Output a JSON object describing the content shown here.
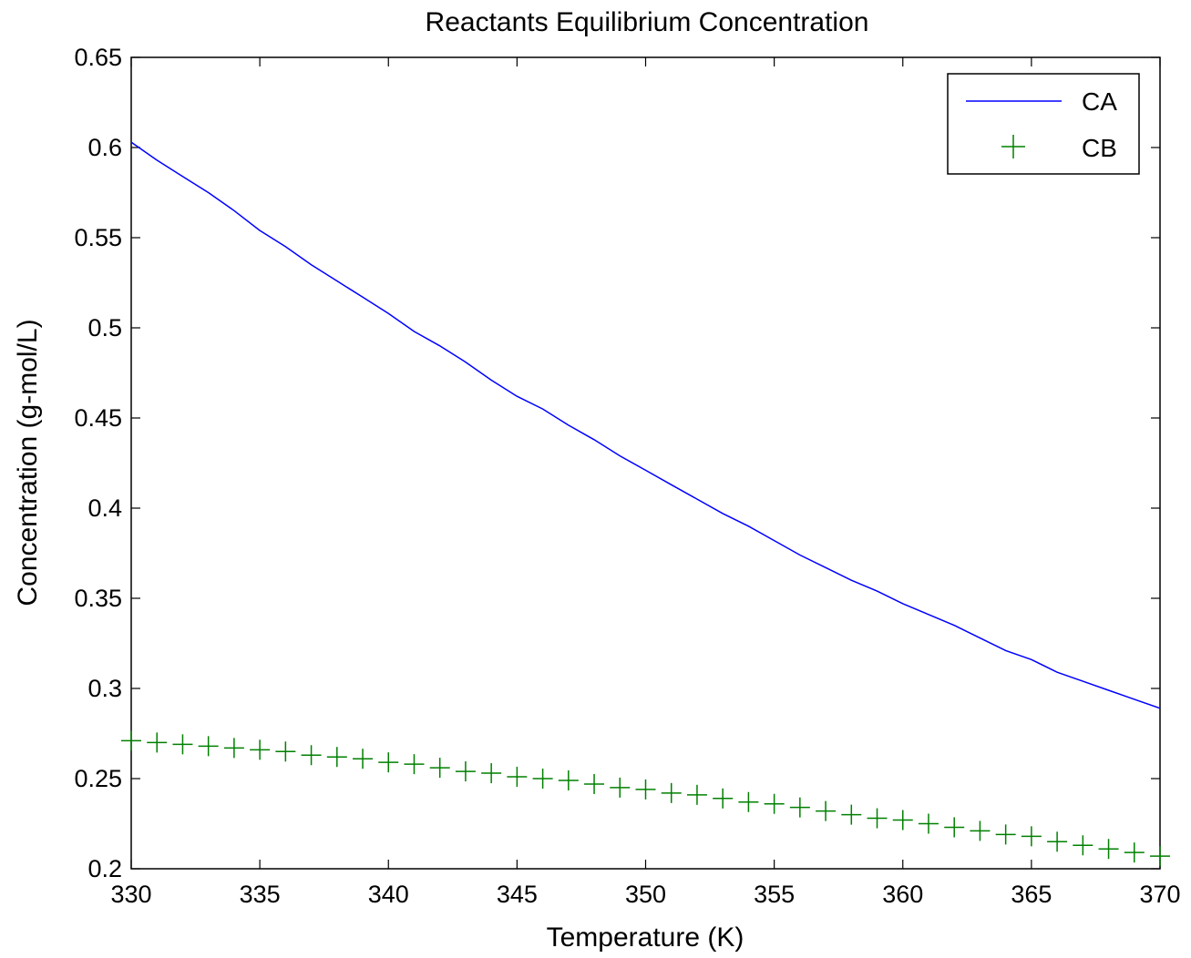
{
  "chart_data": {
    "type": "line",
    "title": "Reactants Equilibrium Concentration",
    "xlabel": "Temperature (K)",
    "ylabel": "Concentration (g-mol/L)",
    "xlim": [
      330,
      370
    ],
    "ylim": [
      0.2,
      0.65
    ],
    "xticks": [
      "330",
      "335",
      "340",
      "345",
      "350",
      "355",
      "360",
      "365",
      "370"
    ],
    "yticks": [
      "0.2",
      "0.25",
      "0.3",
      "0.35",
      "0.4",
      "0.45",
      "0.5",
      "0.55",
      "0.6",
      "0.65"
    ],
    "grid": false,
    "legend_position": "top-right",
    "x": [
      330,
      331,
      332,
      333,
      334,
      335,
      336,
      337,
      338,
      339,
      340,
      341,
      342,
      343,
      344,
      345,
      346,
      347,
      348,
      349,
      350,
      351,
      352,
      353,
      354,
      355,
      356,
      357,
      358,
      359,
      360,
      361,
      362,
      363,
      364,
      365,
      366,
      367,
      368,
      369,
      370
    ],
    "series": [
      {
        "name": "CA",
        "style": "line",
        "color": "#0000ff",
        "values": [
          0.603,
          0.593,
          0.584,
          0.575,
          0.565,
          0.554,
          0.545,
          0.535,
          0.526,
          0.517,
          0.508,
          0.498,
          0.49,
          0.481,
          0.471,
          0.462,
          0.455,
          0.446,
          0.438,
          0.429,
          0.421,
          0.413,
          0.405,
          0.397,
          0.39,
          0.382,
          0.374,
          0.367,
          0.36,
          0.354,
          0.347,
          0.341,
          0.335,
          0.328,
          0.321,
          0.316,
          0.309,
          0.304,
          0.299,
          0.294,
          0.289
        ]
      },
      {
        "name": "CB",
        "style": "markers",
        "marker": "plus",
        "color": "#008000",
        "values": [
          0.271,
          0.27,
          0.269,
          0.268,
          0.267,
          0.266,
          0.265,
          0.263,
          0.262,
          0.261,
          0.259,
          0.258,
          0.256,
          0.254,
          0.253,
          0.251,
          0.25,
          0.249,
          0.247,
          0.245,
          0.244,
          0.242,
          0.241,
          0.239,
          0.237,
          0.236,
          0.234,
          0.232,
          0.23,
          0.228,
          0.227,
          0.225,
          0.223,
          0.221,
          0.219,
          0.218,
          0.215,
          0.213,
          0.211,
          0.209,
          0.207
        ]
      }
    ]
  }
}
